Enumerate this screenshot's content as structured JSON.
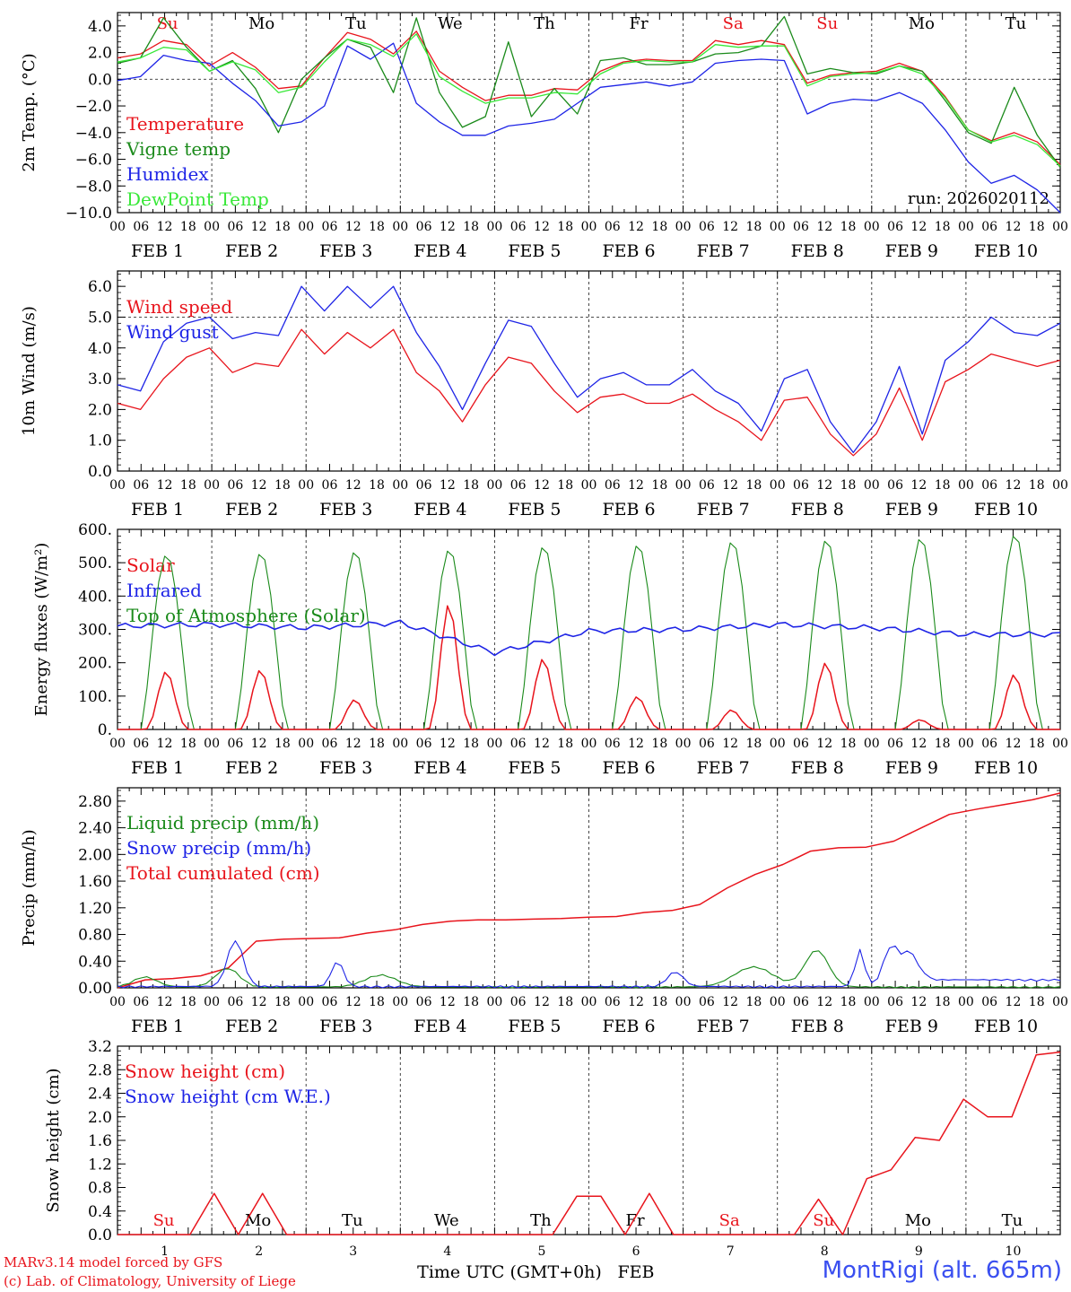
{
  "chart_data": [
    {
      "type": "line",
      "ylabel": "2m Temp. (°C)",
      "ylim": [
        -10,
        5
      ],
      "yticks": [
        "4.0",
        "2.0",
        "0.0",
        "−2.0",
        "−4.0",
        "−6.0",
        "−8.0",
        "−10.0"
      ],
      "ytick_values": [
        4,
        2,
        0,
        -2,
        -4,
        -6,
        -8,
        -10
      ],
      "ref_line": 0,
      "run_label": "run: 2026020112",
      "series": [
        {
          "name": "Temperature",
          "color": "#e8141c",
          "values": [
            1.6,
            1.9,
            2.9,
            2.6,
            1.0,
            2.0,
            0.9,
            -0.7,
            -0.5,
            1.6,
            3.5,
            3.0,
            1.9,
            3.6,
            0.6,
            -0.6,
            -1.6,
            -1.2,
            -1.2,
            -0.7,
            -0.8,
            0.6,
            1.3,
            1.5,
            1.4,
            1.4,
            2.9,
            2.6,
            2.9,
            2.6,
            -0.3,
            0.3,
            0.5,
            0.6,
            1.2,
            0.6,
            -1.3,
            -3.8,
            -4.6,
            -4.0,
            -4.7,
            -6.4
          ]
        },
        {
          "name": "Vigne temp",
          "color": "#1a8a1a",
          "values": [
            1.2,
            1.6,
            4.6,
            2.4,
            0.6,
            1.4,
            -0.7,
            -4.0,
            0.0,
            1.6,
            3.0,
            2.4,
            -1.0,
            4.6,
            -1.0,
            -3.6,
            -2.8,
            2.8,
            -2.8,
            -0.7,
            -2.6,
            1.4,
            1.6,
            1.1,
            1.1,
            1.3,
            1.9,
            2.0,
            2.5,
            4.7,
            0.4,
            0.8,
            0.5,
            0.4,
            1.0,
            0.6,
            -1.6,
            -4.0,
            -4.8,
            -0.6,
            -4.2,
            -6.6
          ]
        },
        {
          "name": "Humidex",
          "color": "#1e24e6",
          "values": [
            -0.1,
            0.2,
            1.8,
            1.4,
            1.2,
            -0.3,
            -1.6,
            -3.5,
            -3.2,
            -2.0,
            2.5,
            1.5,
            2.7,
            -1.8,
            -3.2,
            -4.2,
            -4.2,
            -3.5,
            -3.3,
            -3.0,
            -1.8,
            -0.6,
            -0.4,
            -0.2,
            -0.5,
            -0.2,
            1.2,
            1.4,
            1.5,
            1.4,
            -2.6,
            -1.8,
            -1.5,
            -1.6,
            -1.0,
            -1.8,
            -3.8,
            -6.2,
            -7.8,
            -7.2,
            -8.3,
            -10.0
          ]
        },
        {
          "name": "DewPoint Temp",
          "color": "#38e838",
          "values": [
            1.3,
            1.6,
            2.4,
            2.2,
            0.6,
            1.3,
            0.7,
            -1.0,
            -0.6,
            1.3,
            3.0,
            2.6,
            1.7,
            3.4,
            0.2,
            -0.9,
            -1.8,
            -1.4,
            -1.4,
            -1.0,
            -1.1,
            0.4,
            1.2,
            1.4,
            1.3,
            1.3,
            2.6,
            2.4,
            2.5,
            2.5,
            -0.5,
            0.2,
            0.4,
            0.5,
            1.0,
            0.4,
            -1.4,
            -3.8,
            -4.7,
            -4.2,
            -4.9,
            -6.5
          ]
        }
      ]
    },
    {
      "type": "line",
      "ylabel": "10m Wind (m/s)",
      "ylim": [
        0,
        6.5
      ],
      "yticks": [
        "6.0",
        "5.0",
        "4.0",
        "3.0",
        "2.0",
        "1.0",
        "0.0"
      ],
      "ytick_values": [
        6,
        5,
        4,
        3,
        2,
        1,
        0
      ],
      "ref_line": 5,
      "series": [
        {
          "name": "Wind speed",
          "color": "#e8141c",
          "values": [
            2.2,
            2.0,
            3.0,
            3.7,
            4.0,
            3.2,
            3.5,
            3.4,
            4.6,
            3.8,
            4.5,
            4.0,
            4.6,
            3.2,
            2.6,
            1.6,
            2.8,
            3.7,
            3.5,
            2.6,
            1.9,
            2.4,
            2.5,
            2.2,
            2.2,
            2.5,
            2.0,
            1.6,
            1.0,
            2.3,
            2.4,
            1.2,
            0.5,
            1.2,
            2.7,
            1.0,
            2.9,
            3.3,
            3.8,
            3.6,
            3.4,
            3.6
          ]
        },
        {
          "name": "Wind gust",
          "color": "#1e24e6",
          "values": [
            2.8,
            2.6,
            4.2,
            4.8,
            5.0,
            4.3,
            4.5,
            4.4,
            6.0,
            5.2,
            6.0,
            5.3,
            6.0,
            4.5,
            3.4,
            2.0,
            3.5,
            4.9,
            4.7,
            3.5,
            2.4,
            3.0,
            3.2,
            2.8,
            2.8,
            3.3,
            2.6,
            2.2,
            1.3,
            3.0,
            3.3,
            1.6,
            0.6,
            1.6,
            3.4,
            1.2,
            3.6,
            4.2,
            5.0,
            4.5,
            4.4,
            4.8
          ]
        }
      ]
    },
    {
      "type": "line",
      "ylabel": "Energy fluxes (W/m²)",
      "ylim": [
        0,
        600
      ],
      "yticks": [
        "600.",
        "500.",
        "400.",
        "300.",
        "200.",
        "100.",
        "0."
      ],
      "ytick_values": [
        600,
        500,
        400,
        300,
        200,
        100,
        0
      ],
      "series": [
        {
          "name": "Solar",
          "color": "#e8141c",
          "daily_peaks": [
            175,
            180,
            90,
            380,
            215,
            100,
            60,
            205,
            30,
            170
          ]
        },
        {
          "name": "Infrared",
          "color": "#1e24e6",
          "daily_values": [
            310,
            315,
            305,
            320,
            230,
            295,
            300,
            315,
            305,
            285
          ]
        },
        {
          "name": "Top of Atmosphere (Solar)",
          "color": "#1a8a1a",
          "daily_peaks": [
            525,
            530,
            535,
            540,
            550,
            555,
            565,
            570,
            575,
            585
          ]
        }
      ]
    },
    {
      "type": "line",
      "ylabel": "Precip (mm/h)",
      "ylim": [
        0,
        3.0
      ],
      "yticks": [
        "2.80",
        "2.40",
        "2.00",
        "1.60",
        "1.20",
        "0.80",
        "0.40",
        "0.00"
      ],
      "ytick_values": [
        2.8,
        2.4,
        2.0,
        1.6,
        1.2,
        0.8,
        0.4,
        0.0
      ],
      "series": [
        {
          "name": "Liquid precip (mm/h)",
          "color": "#1a8a1a"
        },
        {
          "name": "Snow precip (mm/h)",
          "color": "#1e24e6"
        },
        {
          "name": "Total cumulated (cm)",
          "color": "#e8141c",
          "values": [
            0.0,
            0.12,
            0.14,
            0.18,
            0.3,
            0.7,
            0.73,
            0.74,
            0.75,
            0.82,
            0.87,
            0.95,
            1.0,
            1.02,
            1.02,
            1.03,
            1.04,
            1.06,
            1.07,
            1.13,
            1.16,
            1.25,
            1.5,
            1.7,
            1.85,
            2.05,
            2.1,
            2.11,
            2.2,
            2.4,
            2.6,
            2.68,
            2.75,
            2.82,
            2.92
          ]
        }
      ]
    },
    {
      "type": "line",
      "ylabel": "Snow height (cm)",
      "ylim": [
        0,
        3.2
      ],
      "yticks": [
        "3.2",
        "2.8",
        "2.4",
        "2.0",
        "1.6",
        "1.2",
        "0.8",
        "0.4",
        "0.0"
      ],
      "ytick_values": [
        3.2,
        2.8,
        2.4,
        2.0,
        1.6,
        1.2,
        0.8,
        0.4,
        0.0
      ],
      "series": [
        {
          "name": "Snow height (cm)",
          "color": "#e8141c",
          "values": [
            0,
            0,
            0,
            0,
            0.7,
            0,
            0.7,
            0,
            0,
            0,
            0,
            0,
            0,
            0,
            0,
            0,
            0,
            0,
            0,
            0.65,
            0.65,
            0,
            0.7,
            0,
            0,
            0,
            0,
            0,
            0,
            0.6,
            0,
            0.95,
            1.1,
            1.65,
            1.6,
            2.3,
            2.0,
            2.0,
            3.05,
            3.1
          ]
        },
        {
          "name": "Snow height (cm W.E.)",
          "color": "#1e24e6"
        }
      ]
    }
  ],
  "x_axis": {
    "hour_ticks": [
      "00",
      "06",
      "12",
      "18"
    ],
    "final_tick": "00",
    "dates": [
      "FEB  1",
      "FEB  2",
      "FEB  3",
      "FEB  4",
      "FEB  5",
      "FEB  6",
      "FEB  7",
      "FEB  8",
      "FEB  9",
      "FEB 10"
    ],
    "day_names": [
      "Su",
      "Mo",
      "Tu",
      "We",
      "Th",
      "Fr",
      "Sa",
      "Su",
      "Mo",
      "Tu"
    ],
    "day_numbers": [
      "1",
      "2",
      "3",
      "4",
      "5",
      "6",
      "7",
      "8",
      "9",
      "10"
    ],
    "weekend_color": "#e8141c",
    "weekday_color": "#000000",
    "xlabel": "Time UTC (GMT+0h)",
    "month_label": "FEB"
  },
  "footer": {
    "credit1": "MARv3.14 model forced by GFS",
    "credit2": "(c) Lab. of Climatology, University of Liege",
    "station": "MontRigi (alt. 665m)"
  }
}
